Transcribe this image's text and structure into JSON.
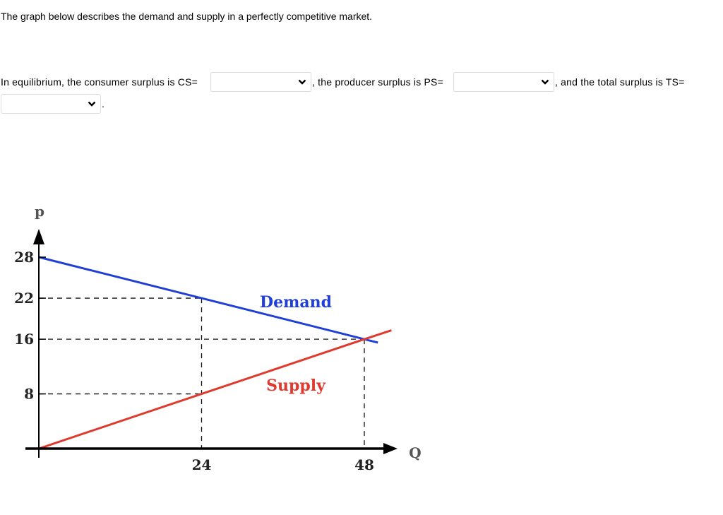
{
  "question": {
    "intro": "The graph below describes the demand and supply in a perfectly competitive market.",
    "part1": "In equilibrium, the consumer surplus is CS=",
    "part2": ", the producer surplus is PS=",
    "part3": ", and the total surplus is TS=",
    "part4": ".",
    "dropdowns": {
      "cs": {
        "selected": ""
      },
      "ps": {
        "selected": ""
      },
      "ts": {
        "selected": ""
      }
    }
  },
  "icons": {
    "dropdown": "chevron-down-icon"
  },
  "chart_data": {
    "type": "line",
    "xlabel": "Q",
    "ylabel": "P",
    "xlim": [
      0,
      48
    ],
    "ylim": [
      0,
      28
    ],
    "x_ticks": [
      24,
      48
    ],
    "y_ticks": [
      8,
      16,
      22,
      28
    ],
    "series": [
      {
        "name": "Demand",
        "color": "#1f3fd6",
        "points": [
          [
            0,
            28
          ],
          [
            24,
            22
          ],
          [
            48,
            16
          ],
          [
            50,
            15.5
          ]
        ]
      },
      {
        "name": "Supply",
        "color": "#e03a2e",
        "points": [
          [
            0,
            0
          ],
          [
            24,
            8
          ],
          [
            48,
            16
          ],
          [
            52,
            17.3
          ]
        ]
      }
    ],
    "guides": [
      {
        "from": [
          0,
          22
        ],
        "to": [
          24,
          22
        ]
      },
      {
        "from": [
          24,
          22
        ],
        "to": [
          24,
          0
        ]
      },
      {
        "from": [
          0,
          16
        ],
        "to": [
          48,
          16
        ]
      },
      {
        "from": [
          48,
          16
        ],
        "to": [
          48,
          0
        ]
      },
      {
        "from": [
          0,
          8
        ],
        "to": [
          24,
          8
        ]
      }
    ]
  }
}
